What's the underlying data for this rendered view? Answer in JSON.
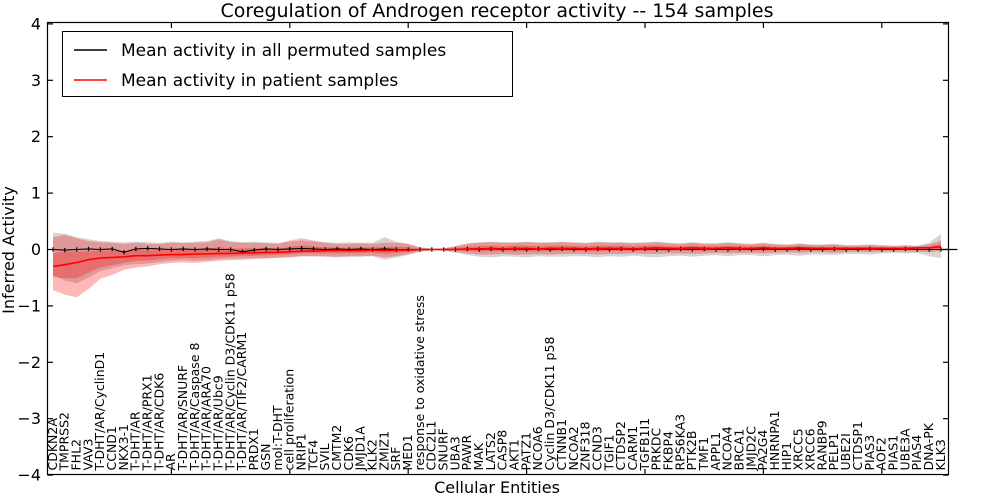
{
  "figure": {
    "title": "Coregulation of Androgen receptor activity -- 154 samples",
    "background": "#ffffff"
  },
  "axes": {
    "xlabel": "Cellular Entities",
    "ylabel": "Inferred Activity",
    "y_tick_labels": [
      "4",
      "3",
      "2",
      "1",
      "0",
      "−1",
      "−2",
      "−3",
      "−4"
    ],
    "y_tick_values": [
      4,
      3,
      2,
      1,
      0,
      -1,
      -2,
      -3,
      -4
    ],
    "ylim": [
      -4,
      4
    ]
  },
  "legend": {
    "entries": [
      {
        "label": "Mean activity in all permuted samples",
        "color": "#000000"
      },
      {
        "label": "Mean activity in patient samples",
        "color": "#ff0000"
      }
    ]
  },
  "colors": {
    "permuted_line": "#000000",
    "patient_line": "#ff0000",
    "permuted_band": "rgba(125,125,125,0.32)",
    "patient_band": "rgba(255,0,0,0.28)",
    "frame": "#000000"
  },
  "chart_data": {
    "type": "line",
    "title": "Coregulation of Androgen receptor activity -- 154 samples",
    "xlabel": "Cellular Entities",
    "ylabel": "Inferred Activity",
    "ylim": [
      -4,
      4
    ],
    "grid": false,
    "legend_position": "upper left",
    "categories": [
      "CDKN2A",
      "TMPRSS2",
      "FHL2",
      "VAV3",
      "T-DHT/AR/CyclinD1",
      "CCND1",
      "NKX3-1",
      "T-DHT/AR",
      "T-DHT/AR/PRX1",
      "T-DHT/AR/CDK6",
      "AR",
      "T-DHT/AR/SNURF",
      "T-DHT/AR/Caspase 8",
      "T-DHT/AR/ARA70",
      "T-DHT/AR/Ubc9",
      "T-DHT/AR/Cyclin D3/CDK11 p58",
      "T-DHT/AR/TIF2/CARM1",
      "PRDX1",
      "GSN",
      "mol:T-DHT",
      "cell proliferation",
      "NRIP1",
      "TCF4",
      "SVIL",
      "CMTM2",
      "CDK6",
      "JMJD1A",
      "KLK2",
      "ZMIZ1",
      "SRF",
      "MED1",
      "response to oxidative stress",
      "CDC2L1",
      "SNURF",
      "UBA3",
      "PAWR",
      "MAK",
      "LATS2",
      "CASP8",
      "AKT1",
      "PATZ1",
      "NCOA6",
      "Cyclin D3/CDK11 p58",
      "CTNNB1",
      "NCOA2",
      "ZNF318",
      "CCND3",
      "TGIF1",
      "CTDSP2",
      "CARM1",
      "TGFB1I1",
      "PRKDC",
      "FKBP4",
      "RPS6KA3",
      "PTK2B",
      "TMF1",
      "APPL1",
      "NCOA4",
      "BRCA1",
      "JMJD2C",
      "PA2G4",
      "HNRNPA1",
      "HIP1",
      "XRCC5",
      "XRCC6",
      "RANBP9",
      "PELP1",
      "UBE2I",
      "CTDSP1",
      "PIAS3",
      "AOF2",
      "PIAS1",
      "UBE3A",
      "PIAS4",
      "DNA-PK",
      "KLK3"
    ],
    "series": [
      {
        "name": "Mean activity in all permuted samples",
        "color": "#000000",
        "values": [
          0,
          -0.01,
          0,
          0.01,
          0,
          0.01,
          -0.05,
          0.01,
          0.02,
          0.01,
          0,
          0.01,
          0,
          0.01,
          0,
          0,
          -0.04,
          -0.01,
          0.01,
          0,
          0.01,
          0.02,
          0.01,
          0,
          0.01,
          0,
          0.01,
          0,
          0.01,
          0,
          0,
          0,
          0,
          0,
          0,
          0.01,
          0,
          0.01,
          0,
          0.01,
          0,
          0.01,
          0,
          0.01,
          0,
          0,
          0.01,
          0,
          0.01,
          0,
          0.01,
          0,
          0,
          0.01,
          0,
          0.01,
          0,
          0,
          0.01,
          0,
          0.01,
          0,
          0,
          0.01,
          0,
          0,
          0.01,
          0,
          0,
          0.01,
          0,
          0,
          0.01,
          0,
          0,
          0
        ],
        "band_upper": [
          0.3,
          0.28,
          0.22,
          0.18,
          0.15,
          0.14,
          0.13,
          0.14,
          0.13,
          0.12,
          0.14,
          0.13,
          0.14,
          0.15,
          0.2,
          0.15,
          0.13,
          0.14,
          0.13,
          0.12,
          0.14,
          0.16,
          0.14,
          0.13,
          0.12,
          0.13,
          0.12,
          0.12,
          0.22,
          0.14,
          0.1,
          0.04,
          0.02,
          0.02,
          0.06,
          0.11,
          0.13,
          0.14,
          0.13,
          0.13,
          0.14,
          0.13,
          0.13,
          0.14,
          0.13,
          0.12,
          0.14,
          0.13,
          0.13,
          0.12,
          0.13,
          0.14,
          0.12,
          0.11,
          0.13,
          0.11,
          0.11,
          0.13,
          0.11,
          0.1,
          0.12,
          0.1,
          0.09,
          0.11,
          0.09,
          0.09,
          0.1,
          0.08,
          0.08,
          0.09,
          0.08,
          0.07,
          0.08,
          0.07,
          0.12,
          0.28
        ],
        "band_lower": [
          -0.45,
          -0.55,
          -0.6,
          -0.5,
          -0.38,
          -0.33,
          -0.28,
          -0.26,
          -0.25,
          -0.22,
          -0.2,
          -0.19,
          -0.2,
          -0.19,
          -0.17,
          -0.16,
          -0.16,
          -0.15,
          -0.15,
          -0.14,
          -0.13,
          -0.12,
          -0.12,
          -0.13,
          -0.14,
          -0.13,
          -0.13,
          -0.12,
          -0.18,
          -0.14,
          -0.1,
          -0.04,
          -0.02,
          -0.02,
          -0.06,
          -0.1,
          -0.13,
          -0.14,
          -0.12,
          -0.13,
          -0.14,
          -0.12,
          -0.13,
          -0.13,
          -0.12,
          -0.12,
          -0.14,
          -0.12,
          -0.13,
          -0.11,
          -0.13,
          -0.14,
          -0.12,
          -0.11,
          -0.13,
          -0.11,
          -0.1,
          -0.12,
          -0.1,
          -0.1,
          -0.12,
          -0.1,
          -0.09,
          -0.11,
          -0.09,
          -0.09,
          -0.1,
          -0.08,
          -0.08,
          -0.09,
          -0.07,
          -0.06,
          -0.07,
          -0.06,
          -0.12,
          -0.15
        ]
      },
      {
        "name": "Mean activity in patient samples",
        "color": "#ff0000",
        "values": [
          -0.3,
          -0.27,
          -0.23,
          -0.18,
          -0.15,
          -0.14,
          -0.13,
          -0.11,
          -0.11,
          -0.1,
          -0.09,
          -0.09,
          -0.08,
          -0.08,
          -0.07,
          -0.07,
          -0.06,
          -0.06,
          -0.05,
          -0.05,
          -0.04,
          -0.03,
          -0.03,
          -0.02,
          -0.02,
          -0.02,
          -0.02,
          -0.01,
          -0.02,
          -0.01,
          -0.01,
          0,
          0,
          0,
          0,
          0.01,
          0.01,
          0.02,
          0.01,
          0.02,
          0.02,
          0.01,
          0.02,
          0.02,
          0.02,
          0.01,
          0.02,
          0.02,
          0.02,
          0.01,
          0.02,
          0.03,
          0.02,
          0.02,
          0.03,
          0.02,
          0.02,
          0.03,
          0.02,
          0.02,
          0.03,
          0.02,
          0.02,
          0.03,
          0.02,
          0.02,
          0.02,
          0.02,
          0.02,
          0.02,
          0.02,
          0.02,
          0.02,
          0.03,
          0.03,
          0.05
        ],
        "band_upper": [
          0.22,
          0.26,
          0.2,
          0.15,
          0.13,
          0.12,
          0.1,
          0.12,
          0.1,
          0.1,
          0.12,
          0.11,
          0.12,
          0.13,
          0.18,
          0.13,
          0.12,
          0.12,
          0.11,
          0.1,
          0.16,
          0.2,
          0.16,
          0.12,
          0.1,
          0.1,
          0.11,
          0.1,
          0.12,
          0.12,
          0.1,
          0.03,
          0.01,
          0.02,
          0.06,
          0.1,
          0.12,
          0.13,
          0.12,
          0.12,
          0.13,
          0.12,
          0.12,
          0.13,
          0.12,
          0.11,
          0.13,
          0.12,
          0.12,
          0.11,
          0.12,
          0.13,
          0.11,
          0.1,
          0.12,
          0.1,
          0.1,
          0.12,
          0.1,
          0.09,
          0.11,
          0.09,
          0.08,
          0.1,
          0.08,
          0.08,
          0.09,
          0.07,
          0.07,
          0.08,
          0.07,
          0.06,
          0.07,
          0.06,
          0.09,
          0.16
        ],
        "band_lower": [
          -0.72,
          -0.8,
          -0.85,
          -0.7,
          -0.52,
          -0.45,
          -0.36,
          -0.32,
          -0.3,
          -0.26,
          -0.24,
          -0.23,
          -0.24,
          -0.22,
          -0.2,
          -0.19,
          -0.18,
          -0.17,
          -0.16,
          -0.15,
          -0.14,
          -0.12,
          -0.12,
          -0.12,
          -0.13,
          -0.12,
          -0.12,
          -0.11,
          -0.14,
          -0.12,
          -0.08,
          -0.03,
          -0.01,
          -0.02,
          -0.04,
          -0.07,
          -0.09,
          -0.09,
          -0.08,
          -0.09,
          -0.09,
          -0.08,
          -0.09,
          -0.08,
          -0.08,
          -0.08,
          -0.09,
          -0.08,
          -0.08,
          -0.07,
          -0.08,
          -0.08,
          -0.07,
          -0.07,
          -0.08,
          -0.07,
          -0.06,
          -0.07,
          -0.06,
          -0.06,
          -0.07,
          -0.06,
          -0.05,
          -0.06,
          -0.05,
          -0.05,
          -0.06,
          -0.05,
          -0.04,
          -0.05,
          -0.04,
          -0.04,
          -0.04,
          -0.04,
          -0.05,
          -0.03
        ]
      }
    ]
  }
}
